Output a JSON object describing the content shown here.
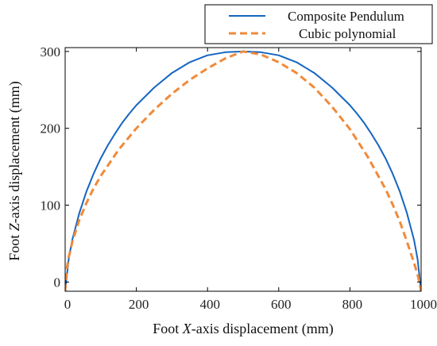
{
  "chart_data": {
    "type": "line",
    "title": "",
    "xlabel_parts": [
      "Foot ",
      "X",
      "-axis displacement (mm)"
    ],
    "ylabel_parts": [
      "Foot ",
      "Z",
      "-axis displacement (mm)"
    ],
    "xlim": [
      0,
      1000
    ],
    "ylim": [
      -12,
      305
    ],
    "xticks": [
      0,
      200,
      400,
      600,
      800,
      1000
    ],
    "yticks": [
      0,
      100,
      200,
      300
    ],
    "xtick_labels": [
      "0",
      "200",
      "400",
      "600",
      "800",
      "1000"
    ],
    "ytick_labels": [
      "0",
      "100",
      "200",
      "300"
    ],
    "grid": false,
    "legend_position": "top-right",
    "series": [
      {
        "name": "Composite Pendulum",
        "color": "#1565c0",
        "dash": "solid",
        "x": [
          0,
          10,
          20,
          40,
          60,
          80,
          100,
          120,
          140,
          160,
          180,
          200,
          250,
          300,
          350,
          400,
          450,
          500,
          550,
          600,
          650,
          700,
          750,
          800,
          820,
          840,
          860,
          880,
          900,
          920,
          940,
          960,
          980,
          990,
          1000
        ],
        "y": [
          -12,
          30,
          55,
          90,
          118,
          141,
          161,
          178,
          193,
          207,
          219,
          230,
          253,
          272,
          286,
          295,
          299,
          300,
          299,
          295,
          286,
          272,
          253,
          230,
          219,
          207,
          193,
          178,
          161,
          141,
          118,
          90,
          55,
          30,
          -12
        ]
      },
      {
        "name": "Cubic polynomial",
        "color": "#f08a3a",
        "dash": "dashed",
        "x": [
          0,
          5,
          10,
          20,
          40,
          60,
          80,
          100,
          150,
          200,
          250,
          300,
          350,
          400,
          450,
          500,
          550,
          600,
          650,
          700,
          750,
          800,
          850,
          900,
          920,
          940,
          960,
          980,
          990,
          995,
          1000
        ],
        "y": [
          -12,
          18,
          32,
          52,
          81,
          103,
          122,
          138,
          172,
          200,
          224,
          245,
          263,
          278,
          291,
          300,
          296,
          286,
          272,
          253,
          228,
          199,
          163,
          121,
          101,
          79,
          53,
          25,
          10,
          0,
          -12
        ]
      }
    ]
  }
}
